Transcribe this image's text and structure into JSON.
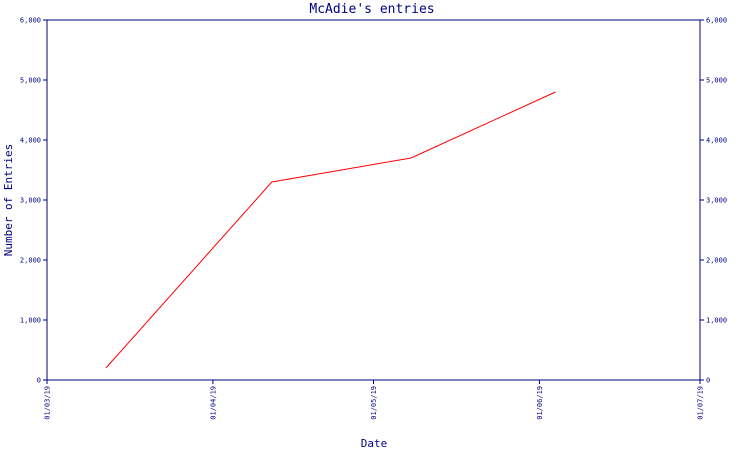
{
  "chart_data": {
    "type": "line",
    "title": "McAdie's entries",
    "xlabel": "Date",
    "ylabel": "Number of Entries",
    "x_ticks": [
      "01/03/19",
      "01/04/19",
      "01/05/19",
      "01/06/19",
      "01/07/19"
    ],
    "x_range": [
      "01/03/19",
      "01/07/19"
    ],
    "y_ticks": [
      "0",
      "1,000",
      "2,000",
      "3,000",
      "4,000",
      "5,000",
      "6,000"
    ],
    "y_ticks_right": [
      "0",
      "1,000",
      "2,000",
      "3,000",
      "4,000",
      "5,000",
      "6,000"
    ],
    "ylim": [
      0,
      6000
    ],
    "grid": false,
    "series": [
      {
        "color": "#ff0000",
        "points": [
          {
            "x": "2019-03-12",
            "y": 200
          },
          {
            "x": "2019-04-12",
            "y": 3300
          },
          {
            "x": "2019-05-08",
            "y": 3700
          },
          {
            "x": "2019-06-04",
            "y": 4800
          }
        ]
      }
    ],
    "colors": {
      "axis": "#000080",
      "text": "#000080"
    }
  }
}
